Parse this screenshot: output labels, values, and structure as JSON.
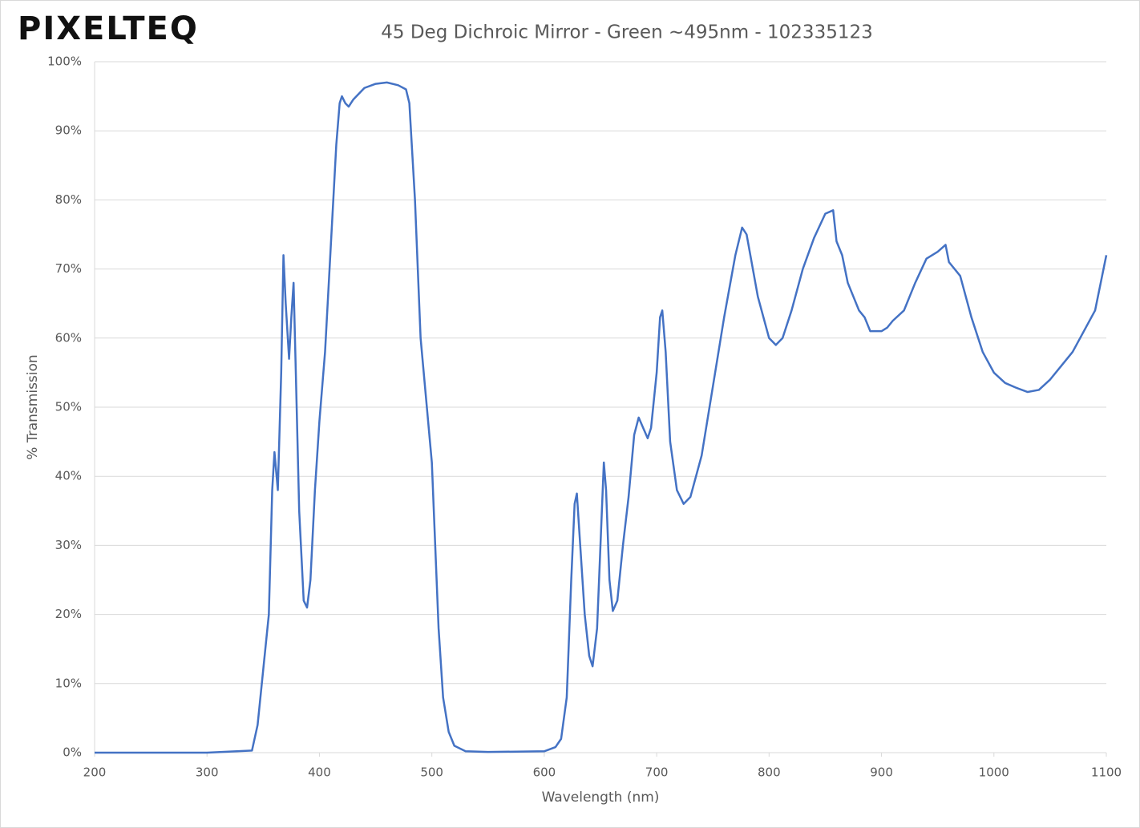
{
  "chart_data": {
    "type": "line",
    "logo": "PIXELTEQ",
    "title": "45 Deg Dichroic Mirror - Green ~495nm - 102335123",
    "x_label": "Wavelength (nm)",
    "y_label": "% Transmission",
    "x": [
      200,
      300,
      340,
      345,
      350,
      355,
      358,
      360,
      363,
      366,
      368,
      370,
      373,
      375,
      377,
      379,
      382,
      386,
      389,
      392,
      396,
      400,
      405,
      410,
      415,
      418,
      420,
      423,
      426,
      430,
      440,
      450,
      460,
      470,
      477,
      480,
      485,
      490,
      495,
      500,
      503,
      506,
      510,
      515,
      520,
      530,
      550,
      600,
      610,
      615,
      620,
      624,
      627,
      629,
      632,
      636,
      640,
      643,
      647,
      650,
      653,
      655,
      658,
      661,
      665,
      670,
      675,
      680,
      684,
      688,
      692,
      695,
      700,
      703,
      705,
      708,
      712,
      718,
      724,
      730,
      740,
      750,
      760,
      770,
      776,
      780,
      790,
      800,
      806,
      812,
      820,
      830,
      840,
      850,
      857,
      860,
      865,
      870,
      875,
      880,
      885,
      890,
      895,
      900,
      905,
      910,
      920,
      930,
      940,
      950,
      957,
      960,
      965,
      970,
      975,
      980,
      990,
      1000,
      1010,
      1020,
      1030,
      1040,
      1050,
      1060,
      1070,
      1080,
      1090,
      1095,
      1100
    ],
    "series": [
      {
        "name": "Transmission",
        "color": "#4472c4",
        "values": [
          0,
          0,
          0.3,
          4,
          12,
          20,
          38,
          43.5,
          38,
          55,
          72,
          65,
          57,
          63,
          68,
          55,
          35,
          22,
          21,
          25,
          38,
          48,
          58,
          73,
          88,
          94,
          95,
          94,
          93.5,
          94.5,
          96.2,
          96.8,
          97,
          96.6,
          96,
          94,
          80,
          60,
          51,
          42,
          30,
          18,
          8,
          3,
          1,
          0.2,
          0.1,
          0.2,
          0.8,
          2,
          8,
          25,
          36,
          37.5,
          30,
          20,
          14,
          12.5,
          18,
          30,
          42,
          38,
          25,
          20.5,
          22,
          30,
          37,
          46,
          48.5,
          47,
          45.5,
          47,
          55,
          63,
          64,
          58,
          45,
          38,
          36,
          37,
          43,
          53,
          63,
          72,
          76,
          75,
          66,
          60,
          59,
          60,
          64,
          70,
          74.5,
          78,
          78.5,
          74,
          72,
          68,
          66,
          64,
          63,
          61,
          61,
          61,
          61.5,
          62.5,
          64,
          68,
          71.5,
          72.5,
          73.5,
          71,
          70,
          69,
          66,
          63,
          58,
          55,
          53.5,
          52.8,
          52.2,
          52.5,
          54,
          56,
          58,
          61,
          64,
          68,
          72
        ]
      }
    ],
    "xlim": [
      200,
      1100
    ],
    "xticks": [
      200,
      300,
      400,
      500,
      600,
      700,
      800,
      900,
      1000,
      1100
    ],
    "ylim": [
      0,
      100
    ],
    "yticks": [
      {
        "value": 0,
        "label": "0%"
      },
      {
        "value": 10,
        "label": "10%"
      },
      {
        "value": 20,
        "label": "20%"
      },
      {
        "value": 30,
        "label": "30%"
      },
      {
        "value": 40,
        "label": "40%"
      },
      {
        "value": 50,
        "label": "50%"
      },
      {
        "value": 60,
        "label": "60%"
      },
      {
        "value": 70,
        "label": "70%"
      },
      {
        "value": 80,
        "label": "80%"
      },
      {
        "value": 90,
        "label": "90%"
      },
      {
        "value": 100,
        "label": "100%"
      }
    ],
    "grid": true
  }
}
